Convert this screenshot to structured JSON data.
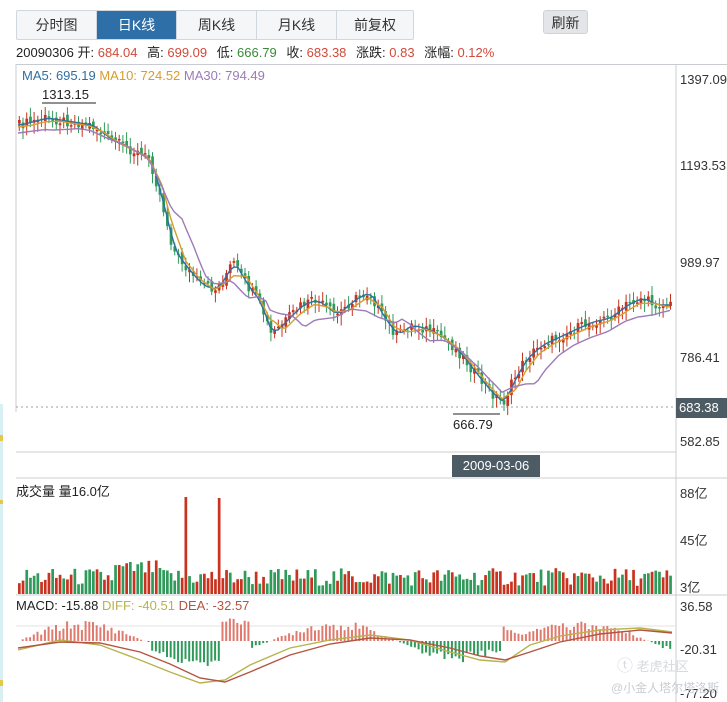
{
  "tabs": [
    {
      "label": "分时图",
      "active": false
    },
    {
      "label": "日K线",
      "active": true
    },
    {
      "label": "周K线",
      "active": false
    },
    {
      "label": "月K线",
      "active": false
    },
    {
      "label": "前复权",
      "active": false
    }
  ],
  "refresh_label": "刷新",
  "quote": {
    "date": "20090306",
    "open_label": "开:",
    "open": "684.04",
    "high_label": "高:",
    "high": "699.09",
    "low_label": "低:",
    "low": "666.79",
    "close_label": "收:",
    "close": "683.38",
    "change_label": "涨跌:",
    "change": "0.83",
    "pct_label": "涨幅:",
    "pct": "0.12%"
  },
  "ma": {
    "ma5": "MA5: 695.19",
    "ma10": "MA10: 724.52",
    "ma30": "MA30: 794.49"
  },
  "price_axis": [
    "1397.09",
    "1193.53",
    "989.97",
    "786.41",
    "582.85"
  ],
  "current_price_tag": "683.38",
  "high_marker": "1313.15",
  "low_marker": "666.79",
  "cursor_date": "2009-03-06",
  "volume": {
    "title": "成交量 量16.0亿",
    "axis": [
      "88亿",
      "45亿",
      "3亿"
    ]
  },
  "macd": {
    "macd_label": "MACD: -15.88",
    "diff_label": "DIFF: -40.51",
    "dea_label": "DEA: -32.57",
    "axis": [
      "36.58",
      "-20.31",
      "-77.20"
    ]
  },
  "watermark": {
    "logo_text": "老虎社区",
    "author": "@小金人塔尔塔洛斯"
  },
  "colors": {
    "up": "#c8321e",
    "down": "#2f9a5a",
    "ma5": "#2e6fa3",
    "ma10": "#d99b2b",
    "ma30": "#9c7bb7",
    "active_tab": "#2f6fa8"
  }
}
